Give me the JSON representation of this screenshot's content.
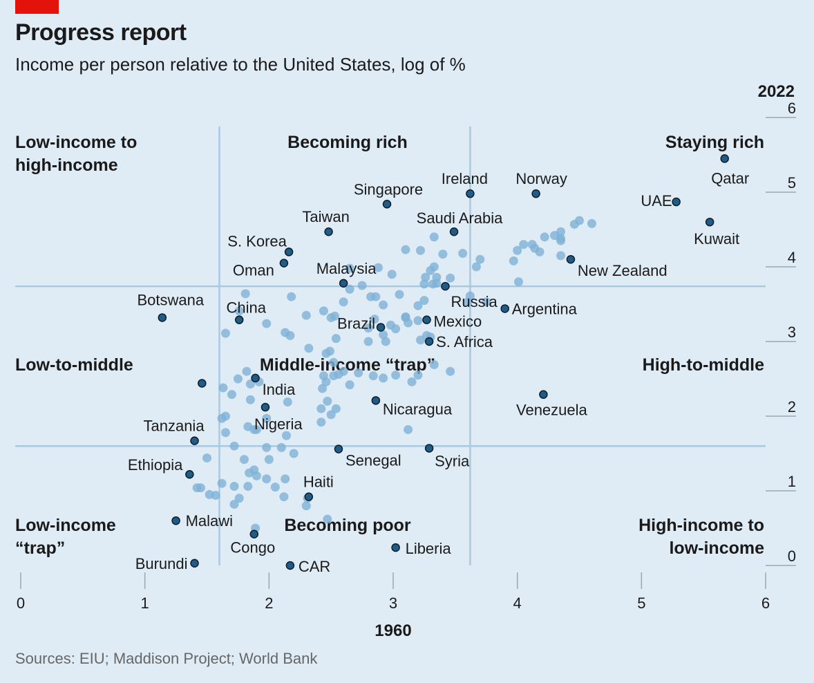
{
  "header": {
    "title": "Progress report",
    "subtitle": "Income per person relative to the United States, log of %",
    "source": "Sources: EIU; Maddison Project; World Bank"
  },
  "colors": {
    "accent": "#e3120b",
    "background": "#e0ecf5",
    "highlight": "#1f5c87",
    "other": "#7fb1d6",
    "grid": "#a9c9de"
  },
  "chart_data": {
    "type": "scatter",
    "title": "Progress report",
    "subtitle": "Income per person relative to the United States, log of %",
    "xlabel": "1960",
    "ylabel": "2022",
    "xlim": [
      0,
      6
    ],
    "ylim": [
      0,
      6
    ],
    "x_ticks": [
      0,
      1,
      2,
      3,
      4,
      5,
      6
    ],
    "y_ticks": [
      0,
      1,
      2,
      3,
      4,
      5,
      6
    ],
    "divider_x": [
      1.6,
      3.62
    ],
    "divider_y": [
      1.6,
      3.74
    ],
    "zones": [
      {
        "id": "low-to-high",
        "label": [
          "Low-income to",
          "high-income"
        ]
      },
      {
        "id": "becoming-rich",
        "label": [
          "Becoming rich"
        ]
      },
      {
        "id": "staying-rich",
        "label": [
          "Staying rich"
        ]
      },
      {
        "id": "low-to-middle",
        "label": [
          "Low-to-middle"
        ]
      },
      {
        "id": "middle-trap",
        "label": [
          "Middle-income “trap”"
        ]
      },
      {
        "id": "high-to-middle",
        "label": [
          "High-to-middle"
        ]
      },
      {
        "id": "low-trap",
        "label": [
          "Low-income",
          "“trap”"
        ]
      },
      {
        "id": "becoming-poor",
        "label": [
          "Becoming poor"
        ]
      },
      {
        "id": "high-to-low",
        "label": [
          "High-income to",
          "low-income"
        ]
      }
    ],
    "highlighted": [
      {
        "name": "Qatar",
        "x": 5.67,
        "y": 5.45
      },
      {
        "name": "UAE",
        "x": 5.28,
        "y": 4.87
      },
      {
        "name": "Kuwait",
        "x": 5.55,
        "y": 4.6
      },
      {
        "name": "Norway",
        "x": 4.15,
        "y": 4.98
      },
      {
        "name": "Ireland",
        "x": 3.62,
        "y": 4.98
      },
      {
        "name": "Singapore",
        "x": 2.95,
        "y": 4.84
      },
      {
        "name": "Saudi Arabia",
        "x": 3.49,
        "y": 4.47
      },
      {
        "name": "Taiwan",
        "x": 2.48,
        "y": 4.47
      },
      {
        "name": "S. Korea",
        "x": 2.16,
        "y": 4.2
      },
      {
        "name": "Oman",
        "x": 2.12,
        "y": 4.05
      },
      {
        "name": "New Zealand",
        "x": 4.43,
        "y": 4.1
      },
      {
        "name": "Malaysia",
        "x": 2.6,
        "y": 3.78
      },
      {
        "name": "Botswana",
        "x": 1.14,
        "y": 3.32
      },
      {
        "name": "China",
        "x": 1.76,
        "y": 3.29
      },
      {
        "name": "Russia",
        "x": 3.42,
        "y": 3.74
      },
      {
        "name": "Argentina",
        "x": 3.9,
        "y": 3.44
      },
      {
        "name": "Brazil",
        "x": 2.9,
        "y": 3.19
      },
      {
        "name": "Mexico",
        "x": 3.27,
        "y": 3.29
      },
      {
        "name": "S. Africa",
        "x": 3.29,
        "y": 3.0
      },
      {
        "name": "India",
        "x": 1.89,
        "y": 2.51
      },
      {
        "name": "Nicaragua",
        "x": 2.86,
        "y": 2.21
      },
      {
        "name": "Venezuela",
        "x": 4.21,
        "y": 2.29
      },
      {
        "name": "Nigeria",
        "x": 1.97,
        "y": 2.12
      },
      {
        "name": "Tanzania",
        "x": 1.4,
        "y": 1.67
      },
      {
        "name": "Senegal",
        "x": 2.56,
        "y": 1.56
      },
      {
        "name": "Syria",
        "x": 3.29,
        "y": 1.57
      },
      {
        "name": "Ethiopia",
        "x": 1.36,
        "y": 1.22
      },
      {
        "name": "Haiti",
        "x": 2.32,
        "y": 0.92
      },
      {
        "name": "Malawi",
        "x": 1.25,
        "y": 0.6
      },
      {
        "name": "Congo",
        "x": 1.88,
        "y": 0.42
      },
      {
        "name": "Liberia",
        "x": 3.02,
        "y": 0.24
      },
      {
        "name": "Burundi",
        "x": 1.4,
        "y": 0.03
      },
      {
        "name": "CAR",
        "x": 2.17,
        "y": 0.0
      },
      {
        "name": "",
        "x": 1.46,
        "y": 2.44
      }
    ],
    "others": [
      [
        4.5,
        4.62
      ],
      [
        4.6,
        4.58
      ],
      [
        4.46,
        4.57
      ],
      [
        4.35,
        4.47
      ],
      [
        4.35,
        4.38
      ],
      [
        4.3,
        4.42
      ],
      [
        4.22,
        4.4
      ],
      [
        4.35,
        4.35
      ],
      [
        4.12,
        4.3
      ],
      [
        4.05,
        4.3
      ],
      [
        4.14,
        4.25
      ],
      [
        4.0,
        4.22
      ],
      [
        4.18,
        4.2
      ],
      [
        3.97,
        4.08
      ],
      [
        4.35,
        4.15
      ],
      [
        4.01,
        3.8
      ],
      [
        3.7,
        4.1
      ],
      [
        3.67,
        4.0
      ],
      [
        3.56,
        4.18
      ],
      [
        3.4,
        4.17
      ],
      [
        3.33,
        4.4
      ],
      [
        3.22,
        4.22
      ],
      [
        3.33,
        4.0
      ],
      [
        3.1,
        4.23
      ],
      [
        3.3,
        3.95
      ],
      [
        3.26,
        3.86
      ],
      [
        3.35,
        3.86
      ],
      [
        3.46,
        3.85
      ],
      [
        3.32,
        3.77
      ],
      [
        3.35,
        3.78
      ],
      [
        3.25,
        3.77
      ],
      [
        2.99,
        3.9
      ],
      [
        2.88,
        3.99
      ],
      [
        2.65,
        3.98
      ],
      [
        2.65,
        3.7
      ],
      [
        2.75,
        3.75
      ],
      [
        2.82,
        3.6
      ],
      [
        2.86,
        3.6
      ],
      [
        3.05,
        3.63
      ],
      [
        3.62,
        3.61
      ],
      [
        3.75,
        3.53
      ],
      [
        3.6,
        3.53
      ],
      [
        3.25,
        3.55
      ],
      [
        3.2,
        3.48
      ],
      [
        2.92,
        3.49
      ],
      [
        2.6,
        3.53
      ],
      [
        2.44,
        3.41
      ],
      [
        2.18,
        3.6
      ],
      [
        1.81,
        3.64
      ],
      [
        1.76,
        3.41
      ],
      [
        2.3,
        3.35
      ],
      [
        1.98,
        3.24
      ],
      [
        2.53,
        3.34
      ],
      [
        2.5,
        3.32
      ],
      [
        2.85,
        3.3
      ],
      [
        3.1,
        3.33
      ],
      [
        3.1,
        3.32
      ],
      [
        3.12,
        3.25
      ],
      [
        3.2,
        3.28
      ],
      [
        2.8,
        3.18
      ],
      [
        2.92,
        3.09
      ],
      [
        3.02,
        3.17
      ],
      [
        2.98,
        3.22
      ],
      [
        3.27,
        3.08
      ],
      [
        3.22,
        3.02
      ],
      [
        3.3,
        3.06
      ],
      [
        2.54,
        3.04
      ],
      [
        2.32,
        2.91
      ],
      [
        2.13,
        3.12
      ],
      [
        2.17,
        3.08
      ],
      [
        1.65,
        3.11
      ],
      [
        2.8,
        3.0
      ],
      [
        2.94,
        3.0
      ],
      [
        2.49,
        2.87
      ],
      [
        2.46,
        2.84
      ],
      [
        2.6,
        2.6
      ],
      [
        2.56,
        2.56
      ],
      [
        2.44,
        2.54
      ],
      [
        2.52,
        2.72
      ],
      [
        2.52,
        2.54
      ],
      [
        2.72,
        2.58
      ],
      [
        3.33,
        2.69
      ],
      [
        3.46,
        2.6
      ],
      [
        3.2,
        2.55
      ],
      [
        2.92,
        2.51
      ],
      [
        2.84,
        2.54
      ],
      [
        3.02,
        2.55
      ],
      [
        3.15,
        2.46
      ],
      [
        2.46,
        2.46
      ],
      [
        2.65,
        2.42
      ],
      [
        1.82,
        2.6
      ],
      [
        1.75,
        2.5
      ],
      [
        1.92,
        2.46
      ],
      [
        1.85,
        2.43
      ],
      [
        1.63,
        2.38
      ],
      [
        1.7,
        2.29
      ],
      [
        1.85,
        2.22
      ],
      [
        2.43,
        2.37
      ],
      [
        2.15,
        2.19
      ],
      [
        2.47,
        2.2
      ],
      [
        2.54,
        2.1
      ],
      [
        2.5,
        2.02
      ],
      [
        2.42,
        2.1
      ],
      [
        1.65,
        2.0
      ],
      [
        1.62,
        1.97
      ],
      [
        2.42,
        1.92
      ],
      [
        1.98,
        1.97
      ],
      [
        1.83,
        1.86
      ],
      [
        1.9,
        1.82
      ],
      [
        1.88,
        1.82
      ],
      [
        1.65,
        1.78
      ],
      [
        3.12,
        1.82
      ],
      [
        2.14,
        1.74
      ],
      [
        1.98,
        1.58
      ],
      [
        2.1,
        1.58
      ],
      [
        2.2,
        1.5
      ],
      [
        2.0,
        1.42
      ],
      [
        1.72,
        1.6
      ],
      [
        1.5,
        1.44
      ],
      [
        1.8,
        1.42
      ],
      [
        1.88,
        1.28
      ],
      [
        1.84,
        1.24
      ],
      [
        1.9,
        1.2
      ],
      [
        1.98,
        1.16
      ],
      [
        2.13,
        1.16
      ],
      [
        2.05,
        1.05
      ],
      [
        1.83,
        1.06
      ],
      [
        1.72,
        1.06
      ],
      [
        1.62,
        1.1
      ],
      [
        1.45,
        1.04
      ],
      [
        1.42,
        1.04
      ],
      [
        1.52,
        0.95
      ],
      [
        1.57,
        0.94
      ],
      [
        1.76,
        0.9
      ],
      [
        1.72,
        0.82
      ],
      [
        2.12,
        0.92
      ],
      [
        2.31,
        0.9
      ],
      [
        2.3,
        0.8
      ],
      [
        2.47,
        0.62
      ],
      [
        1.89,
        0.5
      ]
    ]
  }
}
